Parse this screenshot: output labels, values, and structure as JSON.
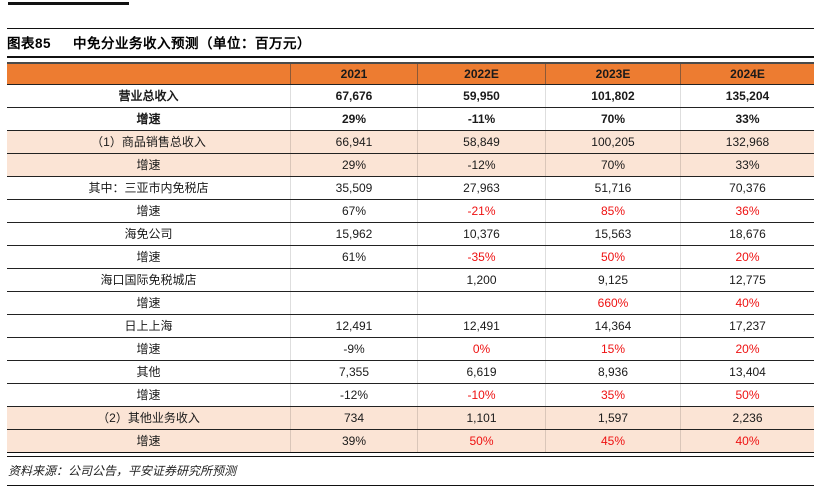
{
  "title": {
    "prefix": "图表85",
    "text": "中免分业务收入预测（单位：百万元）"
  },
  "source": "资料来源：公司公告，平安证券研究所预测",
  "colors": {
    "header_bg": "#ED7C31",
    "highlight_row_bg": "#FBE4D5",
    "negative_red": "#EE1111",
    "rule_black": "#111111"
  },
  "table": {
    "columns": [
      "",
      "2021",
      "2022E",
      "2023E",
      "2024E"
    ],
    "rows": [
      {
        "label": "营业总收入",
        "values": [
          "67,676",
          "59,950",
          "101,802",
          "135,204"
        ],
        "bold": true,
        "highlight": false,
        "red": [
          false,
          false,
          false,
          false
        ]
      },
      {
        "label": "增速",
        "values": [
          "29%",
          "-11%",
          "70%",
          "33%"
        ],
        "bold": true,
        "highlight": false,
        "red": [
          false,
          false,
          false,
          false
        ]
      },
      {
        "label": "（1）商品销售总收入",
        "values": [
          "66,941",
          "58,849",
          "100,205",
          "132,968"
        ],
        "bold": false,
        "highlight": true,
        "red": [
          false,
          false,
          false,
          false
        ]
      },
      {
        "label": "增速",
        "values": [
          "29%",
          "-12%",
          "70%",
          "33%"
        ],
        "bold": false,
        "highlight": true,
        "red": [
          false,
          false,
          false,
          false
        ]
      },
      {
        "label": "其中：三亚市内免税店",
        "values": [
          "35,509",
          "27,963",
          "51,716",
          "70,376"
        ],
        "bold": false,
        "highlight": false,
        "red": [
          false,
          false,
          false,
          false
        ]
      },
      {
        "label": "增速",
        "values": [
          "67%",
          "-21%",
          "85%",
          "36%"
        ],
        "bold": false,
        "highlight": false,
        "red": [
          false,
          true,
          true,
          true
        ]
      },
      {
        "label": "海免公司",
        "values": [
          "15,962",
          "10,376",
          "15,563",
          "18,676"
        ],
        "bold": false,
        "highlight": false,
        "red": [
          false,
          false,
          false,
          false
        ]
      },
      {
        "label": "增速",
        "values": [
          "61%",
          "-35%",
          "50%",
          "20%"
        ],
        "bold": false,
        "highlight": false,
        "red": [
          false,
          true,
          true,
          true
        ]
      },
      {
        "label": "海口国际免税城店",
        "values": [
          "",
          "1,200",
          "9,125",
          "12,775"
        ],
        "bold": false,
        "highlight": false,
        "red": [
          false,
          false,
          false,
          false
        ]
      },
      {
        "label": "增速",
        "values": [
          "",
          "",
          "660%",
          "40%"
        ],
        "bold": false,
        "highlight": false,
        "red": [
          false,
          false,
          true,
          true
        ]
      },
      {
        "label": "日上上海",
        "values": [
          "12,491",
          "12,491",
          "14,364",
          "17,237"
        ],
        "bold": false,
        "highlight": false,
        "red": [
          false,
          false,
          false,
          false
        ]
      },
      {
        "label": "增速",
        "values": [
          "-9%",
          "0%",
          "15%",
          "20%"
        ],
        "bold": false,
        "highlight": false,
        "red": [
          false,
          true,
          true,
          true
        ]
      },
      {
        "label": "其他",
        "values": [
          "7,355",
          "6,619",
          "8,936",
          "13,404"
        ],
        "bold": false,
        "highlight": false,
        "red": [
          false,
          false,
          false,
          false
        ]
      },
      {
        "label": "增速",
        "values": [
          "-12%",
          "-10%",
          "35%",
          "50%"
        ],
        "bold": false,
        "highlight": false,
        "red": [
          false,
          true,
          true,
          true
        ]
      },
      {
        "label": "（2）其他业务收入",
        "values": [
          "734",
          "1,101",
          "1,597",
          "2,236"
        ],
        "bold": false,
        "highlight": true,
        "red": [
          false,
          false,
          false,
          false
        ]
      },
      {
        "label": "增速",
        "values": [
          "39%",
          "50%",
          "45%",
          "40%"
        ],
        "bold": false,
        "highlight": true,
        "red": [
          false,
          true,
          true,
          true
        ]
      }
    ]
  }
}
